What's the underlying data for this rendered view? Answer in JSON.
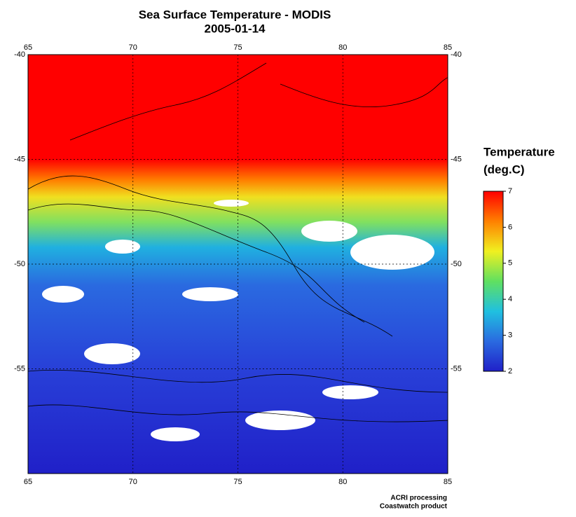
{
  "map": {
    "title": "Sea Surface Temperature - MODIS",
    "subtitle": "2005-01-14",
    "xlim": [
      65,
      85
    ],
    "xticks": [
      65,
      70,
      75,
      80,
      85
    ],
    "ylim": [
      -40,
      -60
    ],
    "yticks": [
      -40,
      -45,
      -50,
      -55
    ],
    "grid": true,
    "colorbar": {
      "title": [
        "Temperature",
        "(deg.C)"
      ],
      "lim": [
        2,
        7
      ],
      "ticks": [
        2,
        3,
        4,
        5,
        6,
        7
      ],
      "colors": [
        "#2020c8",
        "#2a6ae0",
        "#20c0e0",
        "#60e060",
        "#f0f020",
        "#ff8000",
        "#ff0000"
      ]
    },
    "credits": [
      "ACRI processing",
      "Coastwatch product"
    ]
  }
}
